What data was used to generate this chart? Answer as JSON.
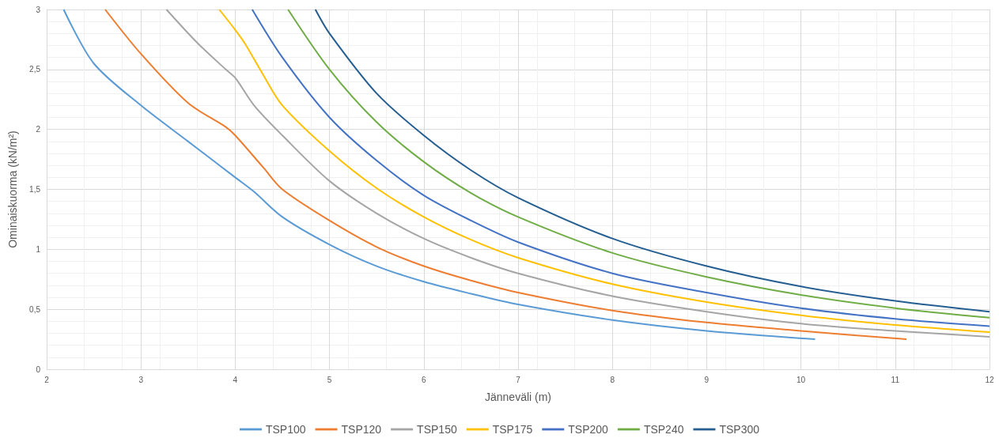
{
  "chart_data": {
    "type": "line",
    "xlabel": "Jänneväli (m)",
    "ylabel": "Ominaiskuorma (kN/m²)",
    "xlim": [
      2,
      12
    ],
    "ylim": [
      0,
      3
    ],
    "xticks": [
      2,
      3,
      4,
      5,
      6,
      7,
      8,
      9,
      10,
      11,
      12
    ],
    "yticks": [
      0,
      {
        "value": 0.5,
        "label": "0,5"
      },
      1,
      {
        "value": 1.5,
        "label": "1,5"
      },
      2,
      {
        "value": 2.5,
        "label": "2,5"
      },
      3
    ],
    "grid": true,
    "legend": "bottom",
    "marker": "none",
    "line_style": "solid",
    "series": [
      {
        "name": "TSP100",
        "color": "#5b9bd5",
        "x": [
          2.18,
          2.5,
          3,
          3.5,
          3.7,
          4,
          4.2,
          4.5,
          5,
          5.5,
          6,
          6.5,
          7,
          8,
          9,
          10.15
        ],
        "values": [
          3,
          2.55,
          2.2,
          1.9,
          1.78,
          1.6,
          1.48,
          1.27,
          1.04,
          0.86,
          0.73,
          0.63,
          0.54,
          0.41,
          0.32,
          0.25
        ]
      },
      {
        "name": "TSP120",
        "color": "#ed7d31",
        "x": [
          2.62,
          3,
          3.5,
          3.9,
          4,
          4.3,
          4.5,
          5,
          5.5,
          6,
          6.5,
          7,
          8,
          9,
          10,
          11.12
        ],
        "values": [
          3,
          2.63,
          2.22,
          2.02,
          1.95,
          1.68,
          1.5,
          1.24,
          1.02,
          0.86,
          0.74,
          0.64,
          0.49,
          0.39,
          0.32,
          0.25
        ]
      },
      {
        "name": "TSP150",
        "color": "#a5a5a5",
        "x": [
          3.27,
          3.6,
          3.9,
          4,
          4.2,
          4.5,
          5,
          5.5,
          6,
          6.5,
          7,
          8,
          9,
          10,
          11,
          12
        ],
        "values": [
          3,
          2.72,
          2.5,
          2.43,
          2.2,
          1.95,
          1.57,
          1.3,
          1.09,
          0.93,
          0.8,
          0.61,
          0.48,
          0.38,
          0.32,
          0.27
        ]
      },
      {
        "name": "TSP175",
        "color": "#ffc000",
        "x": [
          3.83,
          4,
          4.1,
          4.3,
          4.5,
          5,
          5.5,
          6,
          6.5,
          7,
          8,
          9,
          10,
          11,
          12
        ],
        "values": [
          3,
          2.83,
          2.72,
          2.45,
          2.2,
          1.82,
          1.51,
          1.27,
          1.08,
          0.93,
          0.71,
          0.56,
          0.45,
          0.37,
          0.31
        ]
      },
      {
        "name": "TSP200",
        "color": "#4472c4",
        "x": [
          4.18,
          4.5,
          5,
          5.5,
          6,
          6.5,
          7,
          8,
          9,
          10,
          11,
          12
        ],
        "values": [
          3,
          2.6,
          2.1,
          1.74,
          1.45,
          1.24,
          1.06,
          0.8,
          0.64,
          0.51,
          0.42,
          0.36
        ]
      },
      {
        "name": "TSP240",
        "color": "#70ad47",
        "x": [
          4.56,
          5,
          5.5,
          6,
          6.5,
          7,
          8,
          9,
          10,
          11,
          12
        ],
        "values": [
          3,
          2.5,
          2.06,
          1.73,
          1.47,
          1.27,
          0.97,
          0.77,
          0.62,
          0.51,
          0.43
        ]
      },
      {
        "name": "TSP300",
        "color": "#255e91",
        "x": [
          4.85,
          5,
          5.5,
          6,
          6.5,
          7,
          8,
          9,
          10,
          11,
          12
        ],
        "values": [
          3,
          2.8,
          2.3,
          1.95,
          1.66,
          1.43,
          1.09,
          0.86,
          0.69,
          0.57,
          0.48
        ]
      }
    ]
  }
}
